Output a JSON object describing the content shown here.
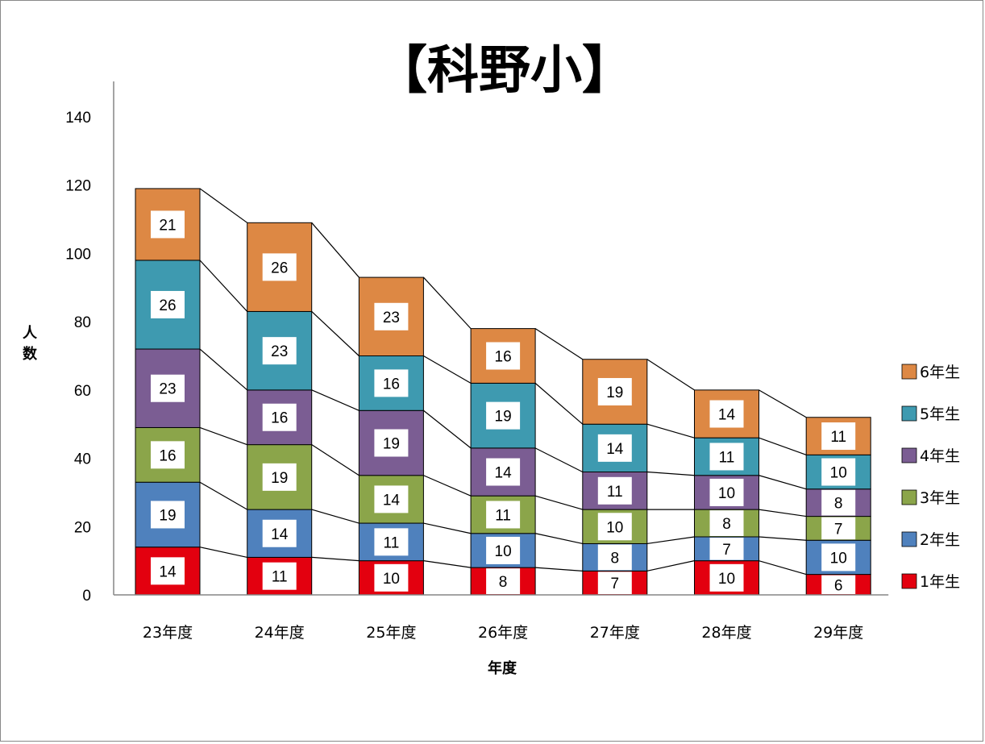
{
  "chart_data": {
    "type": "bar",
    "stacked": true,
    "title": "【科野小】",
    "xlabel": "年度",
    "ylabel": "人数",
    "ylim": [
      0,
      140
    ],
    "yticks": [
      0,
      20,
      40,
      60,
      80,
      100,
      120,
      140
    ],
    "grid": false,
    "legend_position": "right",
    "categories": [
      "23年度",
      "24年度",
      "25年度",
      "26年度",
      "27年度",
      "28年度",
      "29年度"
    ],
    "series": [
      {
        "name": "1年生",
        "color": "#E3000F",
        "values": [
          14,
          11,
          10,
          8,
          7,
          10,
          6
        ]
      },
      {
        "name": "2年生",
        "color": "#4F81BD",
        "values": [
          19,
          14,
          11,
          10,
          8,
          7,
          10
        ]
      },
      {
        "name": "3年生",
        "color": "#8BA54A",
        "values": [
          16,
          19,
          14,
          11,
          10,
          8,
          7
        ]
      },
      {
        "name": "4年生",
        "color": "#7B5D93",
        "values": [
          23,
          16,
          19,
          14,
          11,
          10,
          8
        ]
      },
      {
        "name": "5年生",
        "color": "#3E9AB0",
        "values": [
          26,
          23,
          16,
          19,
          14,
          11,
          10
        ]
      },
      {
        "name": "6年生",
        "color": "#DD8844",
        "values": [
          21,
          26,
          23,
          16,
          19,
          14,
          11
        ]
      }
    ]
  }
}
